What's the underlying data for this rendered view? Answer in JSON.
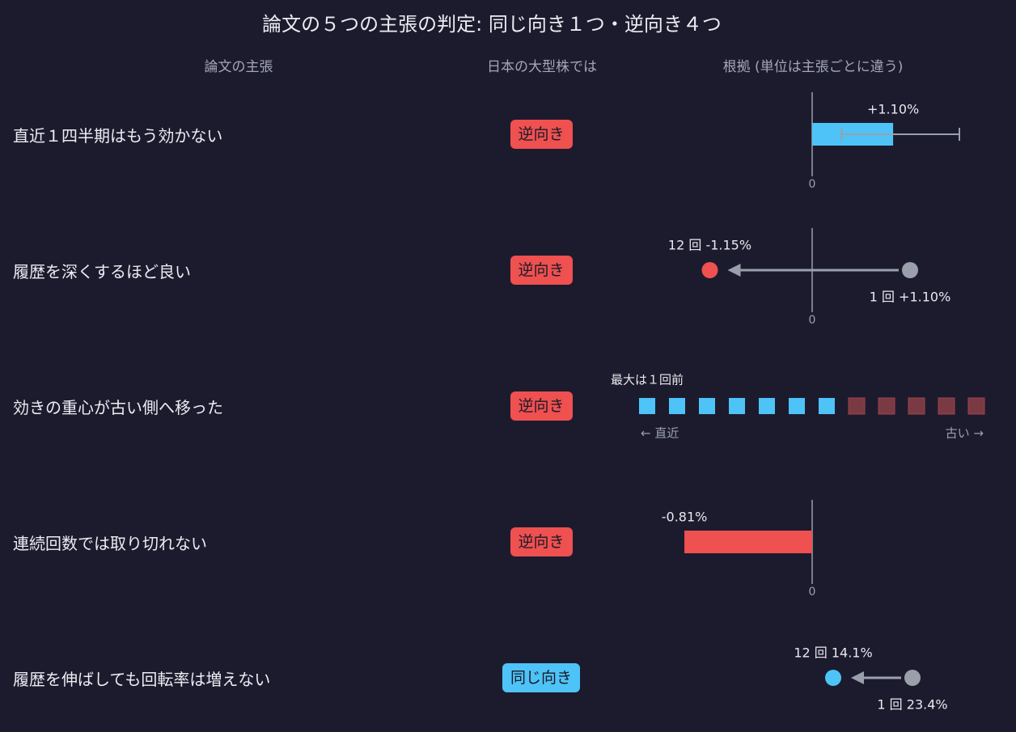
{
  "title": "論文の５つの主張の判定: 同じ向き１つ・逆向き４つ",
  "columns": {
    "claim": "論文の主張",
    "verdict": "日本の大型株では",
    "evidence": "根拠 (単位は主張ごとに違う)"
  },
  "colors": {
    "background": "#1c1b2e",
    "opposite": "#ef5050",
    "same": "#4ec3f7",
    "neutral": "#9aa0ab",
    "axis": "#9aa0ab",
    "faded_red": "#7a3a44"
  },
  "chart_data": {
    "type": "table",
    "rows": [
      {
        "claim": "直近１四半期はもう効かない",
        "verdict": "逆向き",
        "verdict_kind": "opposite",
        "evidence": {
          "kind": "bar_with_error",
          "value": 1.1,
          "value_label": "+1.10%",
          "ci": [
            0.4,
            2.0
          ],
          "zero_label": "0"
        }
      },
      {
        "claim": "履歴を深くするほど良い",
        "verdict": "逆向き",
        "verdict_kind": "opposite",
        "evidence": {
          "kind": "arrow_shift",
          "from": 1.1,
          "to": -1.15,
          "from_label": "1 回 +1.10%",
          "to_label": "12 回 -1.15%",
          "zero_label": "0"
        }
      },
      {
        "claim": "効きの重心が古い側へ移った",
        "verdict": "逆向き",
        "verdict_kind": "opposite",
        "evidence": {
          "kind": "squares",
          "note": "最大は１回前",
          "highlighted": [
            1,
            1,
            1,
            1,
            1,
            1,
            1,
            0,
            0,
            0,
            0,
            0
          ],
          "left_label": "← 直近",
          "right_label": "古い →"
        }
      },
      {
        "claim": "連続回数では取り切れない",
        "verdict": "逆向き",
        "verdict_kind": "opposite",
        "evidence": {
          "kind": "bar",
          "value": -0.81,
          "value_label": "-0.81%",
          "zero_label": "0"
        }
      },
      {
        "claim": "履歴を伸ばしても回転率は増えない",
        "verdict": "同じ向き",
        "verdict_kind": "same",
        "evidence": {
          "kind": "arrow_shift_level",
          "from": 23.4,
          "to": 14.1,
          "from_label": "1 回 23.4%",
          "to_label": "12 回 14.1%"
        }
      }
    ]
  }
}
